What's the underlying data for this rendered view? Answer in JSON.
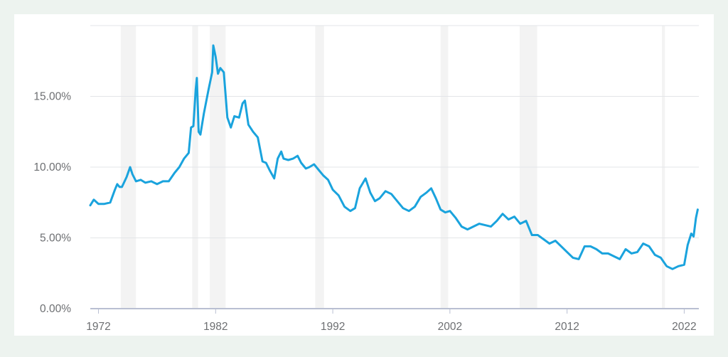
{
  "chart_data": {
    "type": "line",
    "title": "",
    "xlabel": "",
    "ylabel": "",
    "xlim": [
      1971.3,
      2023.25
    ],
    "ylim": [
      0,
      20
    ],
    "grid": true,
    "legend": "none",
    "y_ticks": [
      {
        "value": 0,
        "label": "0.00%"
      },
      {
        "value": 5,
        "label": "5.00%"
      },
      {
        "value": 10,
        "label": "10.00%"
      },
      {
        "value": 15,
        "label": "15.00%"
      }
    ],
    "x_ticks": [
      {
        "value": 1972,
        "label": "1972"
      },
      {
        "value": 1982,
        "label": "1982"
      },
      {
        "value": 1992,
        "label": "1992"
      },
      {
        "value": 2002,
        "label": "2002"
      },
      {
        "value": 2012,
        "label": "2012"
      },
      {
        "value": 2022,
        "label": "2022"
      }
    ],
    "recessions": [
      [
        1973.9,
        1975.2
      ],
      [
        1980.0,
        1980.5
      ],
      [
        1981.5,
        1982.85
      ],
      [
        1990.5,
        1991.25
      ],
      [
        2001.2,
        2001.85
      ],
      [
        2007.95,
        2009.45
      ],
      [
        2020.1,
        2020.35
      ]
    ],
    "colors": {
      "line": "#1aa3dd",
      "recession": "#f3f3f3",
      "grid": "#e3e5e8",
      "axis": "#b9bfd2"
    },
    "series": [
      {
        "name": "",
        "x": [
          1971.3,
          1971.6,
          1972.0,
          1972.5,
          1973.0,
          1973.4,
          1973.6,
          1973.8,
          1974.0,
          1974.4,
          1974.7,
          1974.9,
          1975.2,
          1975.6,
          1976.0,
          1976.5,
          1977.0,
          1977.5,
          1978.0,
          1978.5,
          1978.9,
          1979.3,
          1979.7,
          1979.9,
          1980.1,
          1980.3,
          1980.4,
          1980.55,
          1980.7,
          1981.0,
          1981.4,
          1981.7,
          1981.8,
          1982.0,
          1982.2,
          1982.4,
          1982.7,
          1983.0,
          1983.3,
          1983.6,
          1984.0,
          1984.3,
          1984.5,
          1984.8,
          1985.2,
          1985.6,
          1986.0,
          1986.3,
          1986.6,
          1987.0,
          1987.3,
          1987.6,
          1987.8,
          1988.2,
          1988.6,
          1989.0,
          1989.3,
          1989.7,
          1990.0,
          1990.4,
          1990.8,
          1991.2,
          1991.6,
          1992.0,
          1992.5,
          1993.0,
          1993.5,
          1993.9,
          1994.3,
          1994.8,
          1995.2,
          1995.6,
          1996.0,
          1996.5,
          1997.0,
          1997.5,
          1998.0,
          1998.5,
          1999.0,
          1999.5,
          2000.0,
          2000.4,
          2000.8,
          2001.2,
          2001.6,
          2002.0,
          2002.5,
          2003.0,
          2003.5,
          2004.0,
          2004.5,
          2005.0,
          2005.5,
          2006.0,
          2006.5,
          2007.0,
          2007.5,
          2008.0,
          2008.5,
          2009.0,
          2009.5,
          2010.0,
          2010.5,
          2011.0,
          2011.5,
          2012.0,
          2012.5,
          2013.0,
          2013.5,
          2014.0,
          2014.5,
          2015.0,
          2015.5,
          2016.0,
          2016.5,
          2017.0,
          2017.5,
          2018.0,
          2018.5,
          2019.0,
          2019.5,
          2020.0,
          2020.5,
          2021.0,
          2021.5,
          2022.0,
          2022.3,
          2022.6,
          2022.8,
          2023.0,
          2023.15
        ],
        "y": [
          7.3,
          7.7,
          7.4,
          7.4,
          7.5,
          8.4,
          8.8,
          8.6,
          8.6,
          9.3,
          10.0,
          9.5,
          9.0,
          9.1,
          8.9,
          9.0,
          8.8,
          9.0,
          9.0,
          9.6,
          10.0,
          10.6,
          11.0,
          12.8,
          12.9,
          15.5,
          16.3,
          12.5,
          12.3,
          13.8,
          15.5,
          16.7,
          18.6,
          17.8,
          16.6,
          17.0,
          16.7,
          13.5,
          12.8,
          13.6,
          13.5,
          14.5,
          14.7,
          13.0,
          12.5,
          12.1,
          10.4,
          10.3,
          9.8,
          9.2,
          10.6,
          11.1,
          10.6,
          10.5,
          10.6,
          10.8,
          10.3,
          9.9,
          10.0,
          10.2,
          9.8,
          9.4,
          9.1,
          8.4,
          8.0,
          7.2,
          6.9,
          7.1,
          8.5,
          9.2,
          8.2,
          7.6,
          7.8,
          8.3,
          8.1,
          7.6,
          7.1,
          6.9,
          7.2,
          7.9,
          8.2,
          8.5,
          7.8,
          7.0,
          6.8,
          6.9,
          6.4,
          5.8,
          5.6,
          5.8,
          6.0,
          5.9,
          5.8,
          6.2,
          6.7,
          6.3,
          6.5,
          6.0,
          6.2,
          5.2,
          5.2,
          4.9,
          4.6,
          4.8,
          4.4,
          4.0,
          3.6,
          3.5,
          4.4,
          4.4,
          4.2,
          3.9,
          3.9,
          3.7,
          3.5,
          4.2,
          3.9,
          4.0,
          4.6,
          4.4,
          3.8,
          3.6,
          3.0,
          2.8,
          3.0,
          3.1,
          4.5,
          5.3,
          5.1,
          6.4,
          7.0
        ]
      }
    ]
  }
}
